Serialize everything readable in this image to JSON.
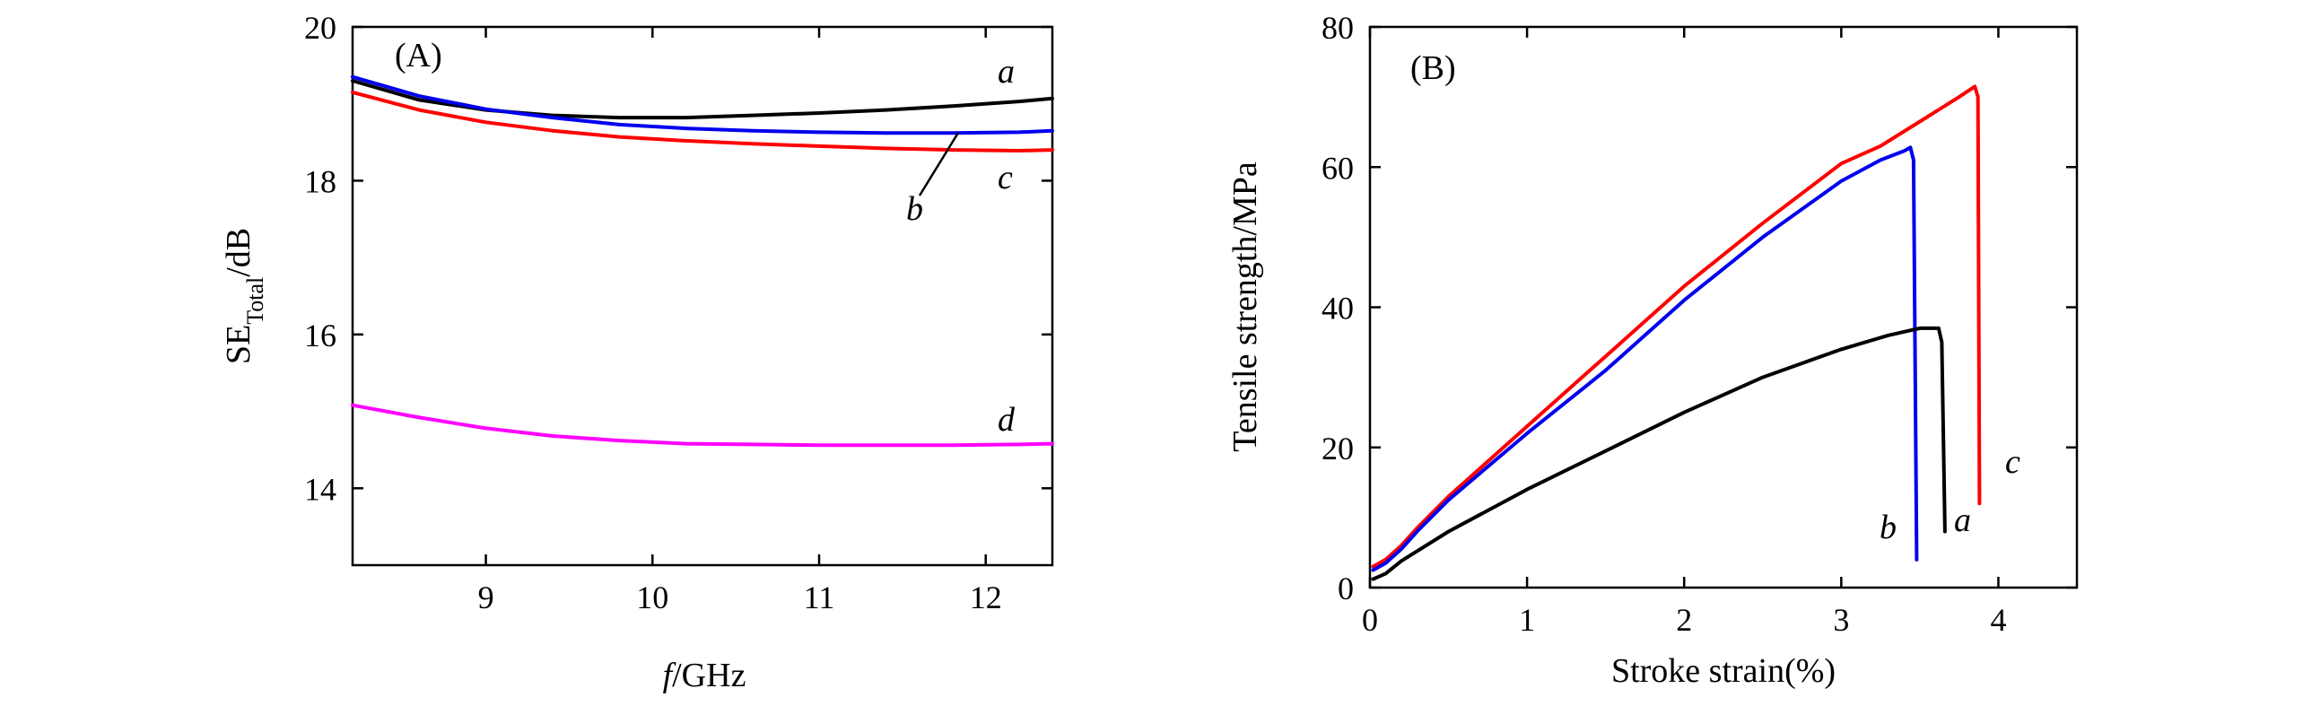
{
  "chart_data": [
    {
      "type": "line",
      "panel_label": "(A)",
      "xlabel_italic": "f",
      "xlabel_rest": "/GHz",
      "ylabel_main": "SE",
      "ylabel_sub": "Total",
      "ylabel_rest": "/dB",
      "xlim": [
        8.2,
        12.4
      ],
      "ylim": [
        13,
        20
      ],
      "xticks": [
        9,
        10,
        11,
        12
      ],
      "yticks": [
        14,
        16,
        18,
        20
      ],
      "grid": false,
      "series": [
        {
          "label": "a",
          "color": "#000000",
          "points": [
            [
              8.2,
              19.3
            ],
            [
              8.6,
              19.05
            ],
            [
              9.0,
              18.92
            ],
            [
              9.4,
              18.85
            ],
            [
              9.8,
              18.82
            ],
            [
              10.2,
              18.82
            ],
            [
              10.6,
              18.85
            ],
            [
              11.0,
              18.88
            ],
            [
              11.4,
              18.92
            ],
            [
              11.8,
              18.97
            ],
            [
              12.2,
              19.03
            ],
            [
              12.4,
              19.07
            ]
          ]
        },
        {
          "label": "b",
          "color": "#0000ee",
          "points": [
            [
              8.2,
              19.35
            ],
            [
              8.6,
              19.1
            ],
            [
              9.0,
              18.93
            ],
            [
              9.4,
              18.82
            ],
            [
              9.8,
              18.73
            ],
            [
              10.2,
              18.68
            ],
            [
              10.6,
              18.65
            ],
            [
              11.0,
              18.63
            ],
            [
              11.4,
              18.62
            ],
            [
              11.8,
              18.62
            ],
            [
              12.2,
              18.63
            ],
            [
              12.4,
              18.65
            ]
          ]
        },
        {
          "label": "c",
          "color": "#ff0000",
          "points": [
            [
              8.2,
              19.15
            ],
            [
              8.6,
              18.92
            ],
            [
              9.0,
              18.76
            ],
            [
              9.4,
              18.65
            ],
            [
              9.8,
              18.57
            ],
            [
              10.2,
              18.52
            ],
            [
              10.6,
              18.48
            ],
            [
              11.0,
              18.45
            ],
            [
              11.4,
              18.42
            ],
            [
              11.8,
              18.4
            ],
            [
              12.2,
              18.39
            ],
            [
              12.4,
              18.4
            ]
          ]
        },
        {
          "label": "d",
          "color": "#ff00ff",
          "points": [
            [
              8.2,
              15.08
            ],
            [
              8.6,
              14.92
            ],
            [
              9.0,
              14.78
            ],
            [
              9.4,
              14.68
            ],
            [
              9.8,
              14.62
            ],
            [
              10.2,
              14.58
            ],
            [
              10.6,
              14.57
            ],
            [
              11.0,
              14.56
            ],
            [
              11.4,
              14.56
            ],
            [
              11.8,
              14.56
            ],
            [
              12.2,
              14.57
            ],
            [
              12.4,
              14.58
            ]
          ]
        }
      ]
    },
    {
      "type": "line",
      "panel_label": "(B)",
      "xlabel": "Stroke strain(%)",
      "ylabel": "Tensile strength/MPa",
      "xlim": [
        0,
        4.5
      ],
      "ylim": [
        0,
        80
      ],
      "xticks": [
        0,
        1,
        2,
        3,
        4
      ],
      "yticks": [
        0,
        20,
        40,
        60,
        80
      ],
      "grid": false,
      "series": [
        {
          "label": "c",
          "color": "#ff0000",
          "points": [
            [
              0.02,
              3
            ],
            [
              0.1,
              4
            ],
            [
              0.2,
              6
            ],
            [
              0.3,
              8.5
            ],
            [
              0.5,
              13
            ],
            [
              1.0,
              23
            ],
            [
              1.5,
              33
            ],
            [
              1.6,
              35
            ],
            [
              2.0,
              43
            ],
            [
              2.5,
              52
            ],
            [
              3.0,
              60.5
            ],
            [
              3.25,
              63
            ],
            [
              3.5,
              66.5
            ],
            [
              3.75,
              70
            ],
            [
              3.85,
              71.5
            ],
            [
              3.87,
              70
            ],
            [
              3.88,
              12
            ]
          ]
        },
        {
          "label": "b",
          "color": "#0000ee",
          "points": [
            [
              0.02,
              2.5
            ],
            [
              0.1,
              3.5
            ],
            [
              0.2,
              5.5
            ],
            [
              0.3,
              8
            ],
            [
              0.5,
              12.5
            ],
            [
              1.0,
              22
            ],
            [
              1.5,
              31
            ],
            [
              1.6,
              33
            ],
            [
              2.0,
              41
            ],
            [
              2.5,
              50
            ],
            [
              3.0,
              58
            ],
            [
              3.25,
              61
            ],
            [
              3.4,
              62.3
            ],
            [
              3.44,
              62.8
            ],
            [
              3.46,
              61
            ],
            [
              3.48,
              4
            ]
          ]
        },
        {
          "label": "a",
          "color": "#000000",
          "points": [
            [
              0.02,
              1.2
            ],
            [
              0.1,
              2
            ],
            [
              0.2,
              3.8
            ],
            [
              0.5,
              8
            ],
            [
              1.0,
              14
            ],
            [
              1.5,
              19.5
            ],
            [
              2.0,
              25
            ],
            [
              2.5,
              30
            ],
            [
              3.0,
              34
            ],
            [
              3.3,
              36
            ],
            [
              3.5,
              37
            ],
            [
              3.62,
              37
            ],
            [
              3.64,
              35
            ],
            [
              3.66,
              8
            ]
          ]
        }
      ]
    }
  ]
}
